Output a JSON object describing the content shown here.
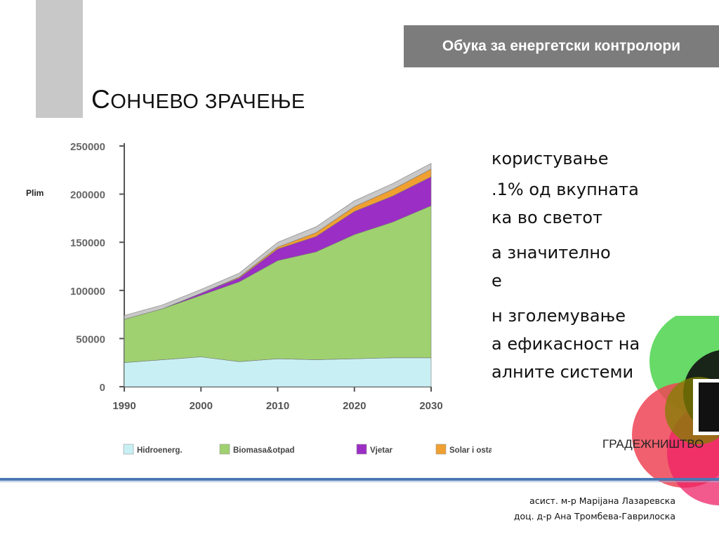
{
  "header": {
    "course_title": "Обука за енергетски контролори"
  },
  "slide": {
    "title_initial": "С",
    "title_rest": "ОНЧЕВО ЗРАЧЕЊЕ",
    "body_lines": [
      "користување",
      ".1% од вкупната",
      "ка во светот",
      "а значително",
      "е",
      "н зголемување",
      "а ефикасност на",
      "алните системи"
    ]
  },
  "logo": {
    "label": "ГРАДЕЖНИШТВО"
  },
  "footer": {
    "author1": "асист. м-р Марijана Лазаревска",
    "author2": "доц. д-р Ана Тромбева-Гаврилоска"
  },
  "chart_data": {
    "type": "area",
    "ylabel": "Plim",
    "ylim": [
      0,
      250000
    ],
    "xlim": [
      1990,
      2030
    ],
    "yticks": [
      "250000",
      "200000",
      "150000",
      "100000",
      "50000",
      "0"
    ],
    "xticks": [
      "1990",
      "2000",
      "2010",
      "2020",
      "2030"
    ],
    "x": [
      1990,
      1995,
      2000,
      2005,
      2010,
      2015,
      2020,
      2025,
      2030
    ],
    "legend_position": "bottom",
    "series": [
      {
        "name": "Hidroenerg.",
        "color": "#c8f0f4",
        "values": [
          25000,
          28000,
          31000,
          26000,
          29000,
          28000,
          29000,
          30000,
          30000
        ]
      },
      {
        "name": "Biomasa&otpad",
        "color": "#9fd170",
        "values": [
          45000,
          53000,
          64000,
          83000,
          102000,
          112000,
          129000,
          141000,
          158000
        ]
      },
      {
        "name": "Vjetar",
        "color": "#9b2ec4",
        "values": [
          0,
          0,
          2000,
          4000,
          12000,
          16000,
          24000,
          27000,
          30000
        ]
      },
      {
        "name": "Solar i ostalo",
        "color": "#f0a030",
        "values": [
          0,
          0,
          0,
          1000,
          2000,
          4000,
          5000,
          7000,
          8000
        ]
      },
      {
        "color": "#c8c8c8",
        "values": [
          4000,
          4000,
          4000,
          4000,
          5000,
          6000,
          6000,
          6000,
          6000
        ]
      }
    ]
  }
}
